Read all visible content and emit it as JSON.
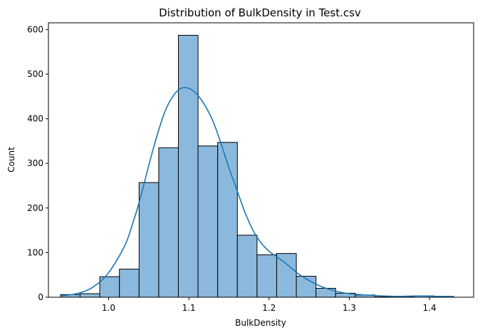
{
  "chart_data": {
    "type": "bar",
    "title": "Distribution of BulkDensity in Test.csv",
    "xlabel": "BulkDensity",
    "ylabel": "Count",
    "xlim": [
      0.925,
      1.455
    ],
    "ylim": [
      0,
      615
    ],
    "x_ticks": [
      1.0,
      1.1,
      1.2,
      1.3,
      1.4
    ],
    "x_tick_labels": [
      "1.0",
      "1.1",
      "1.2",
      "1.3",
      "1.4"
    ],
    "y_ticks": [
      0,
      100,
      200,
      300,
      400,
      500,
      600
    ],
    "y_tick_labels": [
      "0",
      "100",
      "200",
      "300",
      "400",
      "500",
      "600"
    ],
    "bin_edges": [
      0.94,
      0.9645,
      0.989,
      1.0135,
      1.038,
      1.0625,
      1.087,
      1.1115,
      1.136,
      1.1605,
      1.185,
      1.2095,
      1.234,
      1.2585,
      1.283,
      1.3075,
      1.332,
      1.3565,
      1.381,
      1.4055,
      1.43
    ],
    "values": [
      6,
      8,
      46,
      63,
      257,
      335,
      587,
      339,
      347,
      139,
      95,
      98,
      47,
      20,
      9,
      5,
      1,
      1,
      3,
      2
    ],
    "bar_color": "#8bb9dd",
    "bar_edge_color": "#000000",
    "kde": {
      "color": "#1f77b4",
      "x": [
        0.94,
        0.96,
        0.98,
        1.0,
        1.02,
        1.03,
        1.04,
        1.05,
        1.06,
        1.07,
        1.08,
        1.09,
        1.1,
        1.11,
        1.12,
        1.13,
        1.14,
        1.15,
        1.16,
        1.17,
        1.18,
        1.19,
        1.2,
        1.21,
        1.22,
        1.23,
        1.24,
        1.26,
        1.28,
        1.3,
        1.33,
        1.36,
        1.39,
        1.41,
        1.43
      ],
      "y": [
        3,
        8,
        22,
        55,
        115,
        165,
        225,
        295,
        360,
        415,
        450,
        468,
        468,
        455,
        430,
        395,
        345,
        290,
        240,
        190,
        150,
        122,
        103,
        90,
        77,
        62,
        48,
        28,
        15,
        8,
        4,
        2,
        3,
        2,
        1
      ]
    },
    "grid": false
  }
}
